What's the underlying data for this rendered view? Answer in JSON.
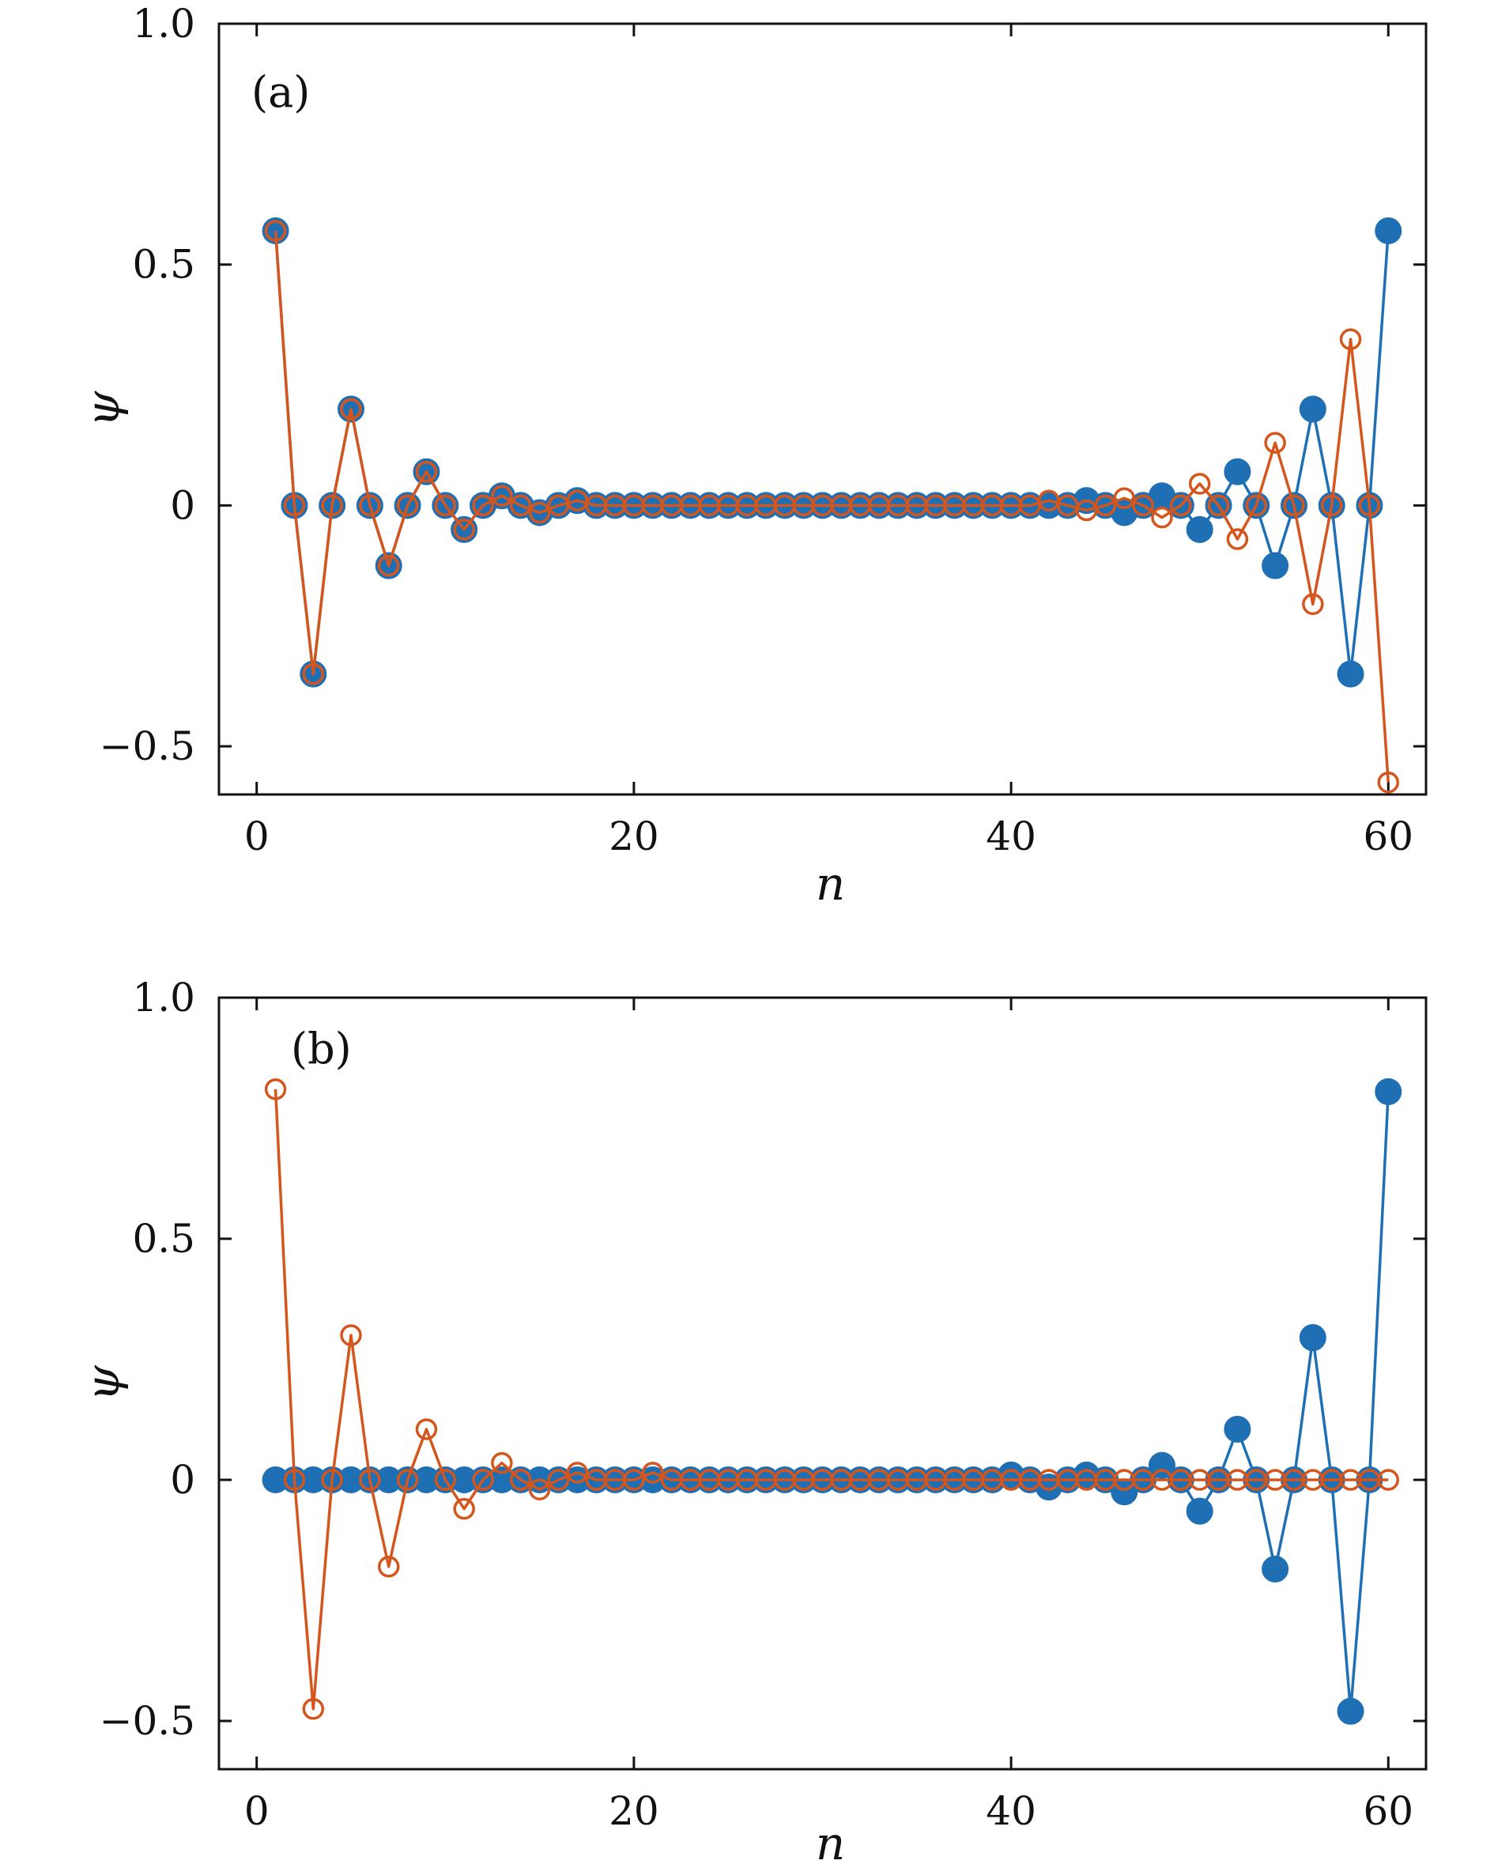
{
  "chart_data": [
    {
      "type": "line",
      "panel_label": "(a)",
      "xlabel": "n",
      "ylabel": "ψ",
      "xlim": [
        -2,
        62
      ],
      "ylim": [
        -0.6,
        1.0
      ],
      "xticks": [
        0,
        20,
        40,
        60
      ],
      "yticks": [
        -0.5,
        0,
        0.5,
        1.0
      ],
      "xtick_labels": [
        "0",
        "20",
        "40",
        "60"
      ],
      "ytick_labels": [
        "−0.5",
        "0",
        "0.5",
        "1.0"
      ],
      "grid": false,
      "x": [
        1,
        2,
        3,
        4,
        5,
        6,
        7,
        8,
        9,
        10,
        11,
        12,
        13,
        14,
        15,
        16,
        17,
        18,
        19,
        20,
        21,
        22,
        23,
        24,
        25,
        26,
        27,
        28,
        29,
        30,
        31,
        32,
        33,
        34,
        35,
        36,
        37,
        38,
        39,
        40,
        41,
        42,
        43,
        44,
        45,
        46,
        47,
        48,
        49,
        50,
        51,
        52,
        53,
        54,
        55,
        56,
        57,
        58,
        59,
        60
      ],
      "series": [
        {
          "color": "#1f6fb4",
          "marker": "filled",
          "values": [
            0.57,
            0,
            -0.35,
            0,
            0.2,
            0,
            -0.125,
            0,
            0.07,
            0,
            -0.05,
            0,
            0.02,
            0,
            -0.015,
            0,
            0.01,
            0,
            0,
            0,
            0,
            0,
            0,
            0,
            0,
            0,
            0,
            0,
            0,
            0,
            0,
            0,
            0,
            0,
            0,
            0,
            0,
            0,
            0,
            0,
            0,
            0,
            0,
            0.01,
            0,
            -0.015,
            0,
            0.02,
            0,
            -0.05,
            0,
            0.07,
            0,
            -0.125,
            0,
            0.2,
            0,
            -0.35,
            0,
            0.57
          ]
        },
        {
          "color": "#d4561c",
          "marker": "open",
          "values": [
            0.57,
            0,
            -0.35,
            0,
            0.2,
            0,
            -0.125,
            0,
            0.07,
            0,
            -0.05,
            0,
            0.02,
            0,
            -0.015,
            0,
            0.01,
            0,
            0,
            0,
            0,
            0,
            0,
            0,
            0,
            0,
            0,
            0,
            0,
            0,
            0,
            0,
            0,
            0,
            0,
            0,
            0,
            0,
            0,
            0,
            0,
            0.01,
            0,
            -0.01,
            0,
            0.015,
            0,
            -0.025,
            0,
            0.045,
            0,
            -0.07,
            0,
            0.13,
            0,
            -0.205,
            0,
            0.345,
            0,
            -0.575
          ]
        }
      ]
    },
    {
      "type": "line",
      "panel_label": "(b)",
      "xlabel": "n",
      "ylabel": "ψ",
      "xlim": [
        -2,
        62
      ],
      "ylim": [
        -0.6,
        1.0
      ],
      "xticks": [
        0,
        20,
        40,
        60
      ],
      "yticks": [
        -0.5,
        0,
        0.5,
        1.0
      ],
      "xtick_labels": [
        "0",
        "20",
        "40",
        "60"
      ],
      "ytick_labels": [
        "−0.5",
        "0",
        "0.5",
        "1.0"
      ],
      "grid": false,
      "x": [
        1,
        2,
        3,
        4,
        5,
        6,
        7,
        8,
        9,
        10,
        11,
        12,
        13,
        14,
        15,
        16,
        17,
        18,
        19,
        20,
        21,
        22,
        23,
        24,
        25,
        26,
        27,
        28,
        29,
        30,
        31,
        32,
        33,
        34,
        35,
        36,
        37,
        38,
        39,
        40,
        41,
        42,
        43,
        44,
        45,
        46,
        47,
        48,
        49,
        50,
        51,
        52,
        53,
        54,
        55,
        56,
        57,
        58,
        59,
        60
      ],
      "series": [
        {
          "color": "#1f6fb4",
          "marker": "filled",
          "values": [
            0,
            0,
            0,
            0,
            0,
            0,
            0,
            0,
            0,
            0,
            0,
            0,
            0,
            0,
            0,
            0,
            0,
            0,
            0,
            0,
            0,
            0,
            0,
            0,
            0,
            0,
            0,
            0,
            0,
            0,
            0,
            0,
            0,
            0,
            0,
            0,
            0,
            0,
            0,
            0.01,
            0,
            -0.015,
            0,
            0.01,
            0,
            -0.025,
            0,
            0.03,
            0,
            -0.065,
            0,
            0.105,
            0,
            -0.185,
            0,
            0.295,
            0,
            -0.48,
            0,
            0.805
          ]
        },
        {
          "color": "#d4561c",
          "marker": "open",
          "values": [
            0.81,
            0,
            -0.475,
            0,
            0.3,
            0,
            -0.18,
            0,
            0.105,
            0,
            -0.06,
            0,
            0.035,
            0,
            -0.02,
            0,
            0.015,
            0,
            0,
            0,
            0.015,
            0,
            0,
            0,
            0,
            0,
            0,
            0,
            0,
            0,
            0,
            0,
            0,
            0,
            0,
            0,
            0,
            0,
            0,
            0,
            0,
            0,
            0,
            0,
            0,
            0,
            0,
            0,
            0,
            0,
            0,
            0,
            0,
            0,
            0,
            0,
            0,
            0,
            0,
            0
          ]
        }
      ]
    }
  ]
}
